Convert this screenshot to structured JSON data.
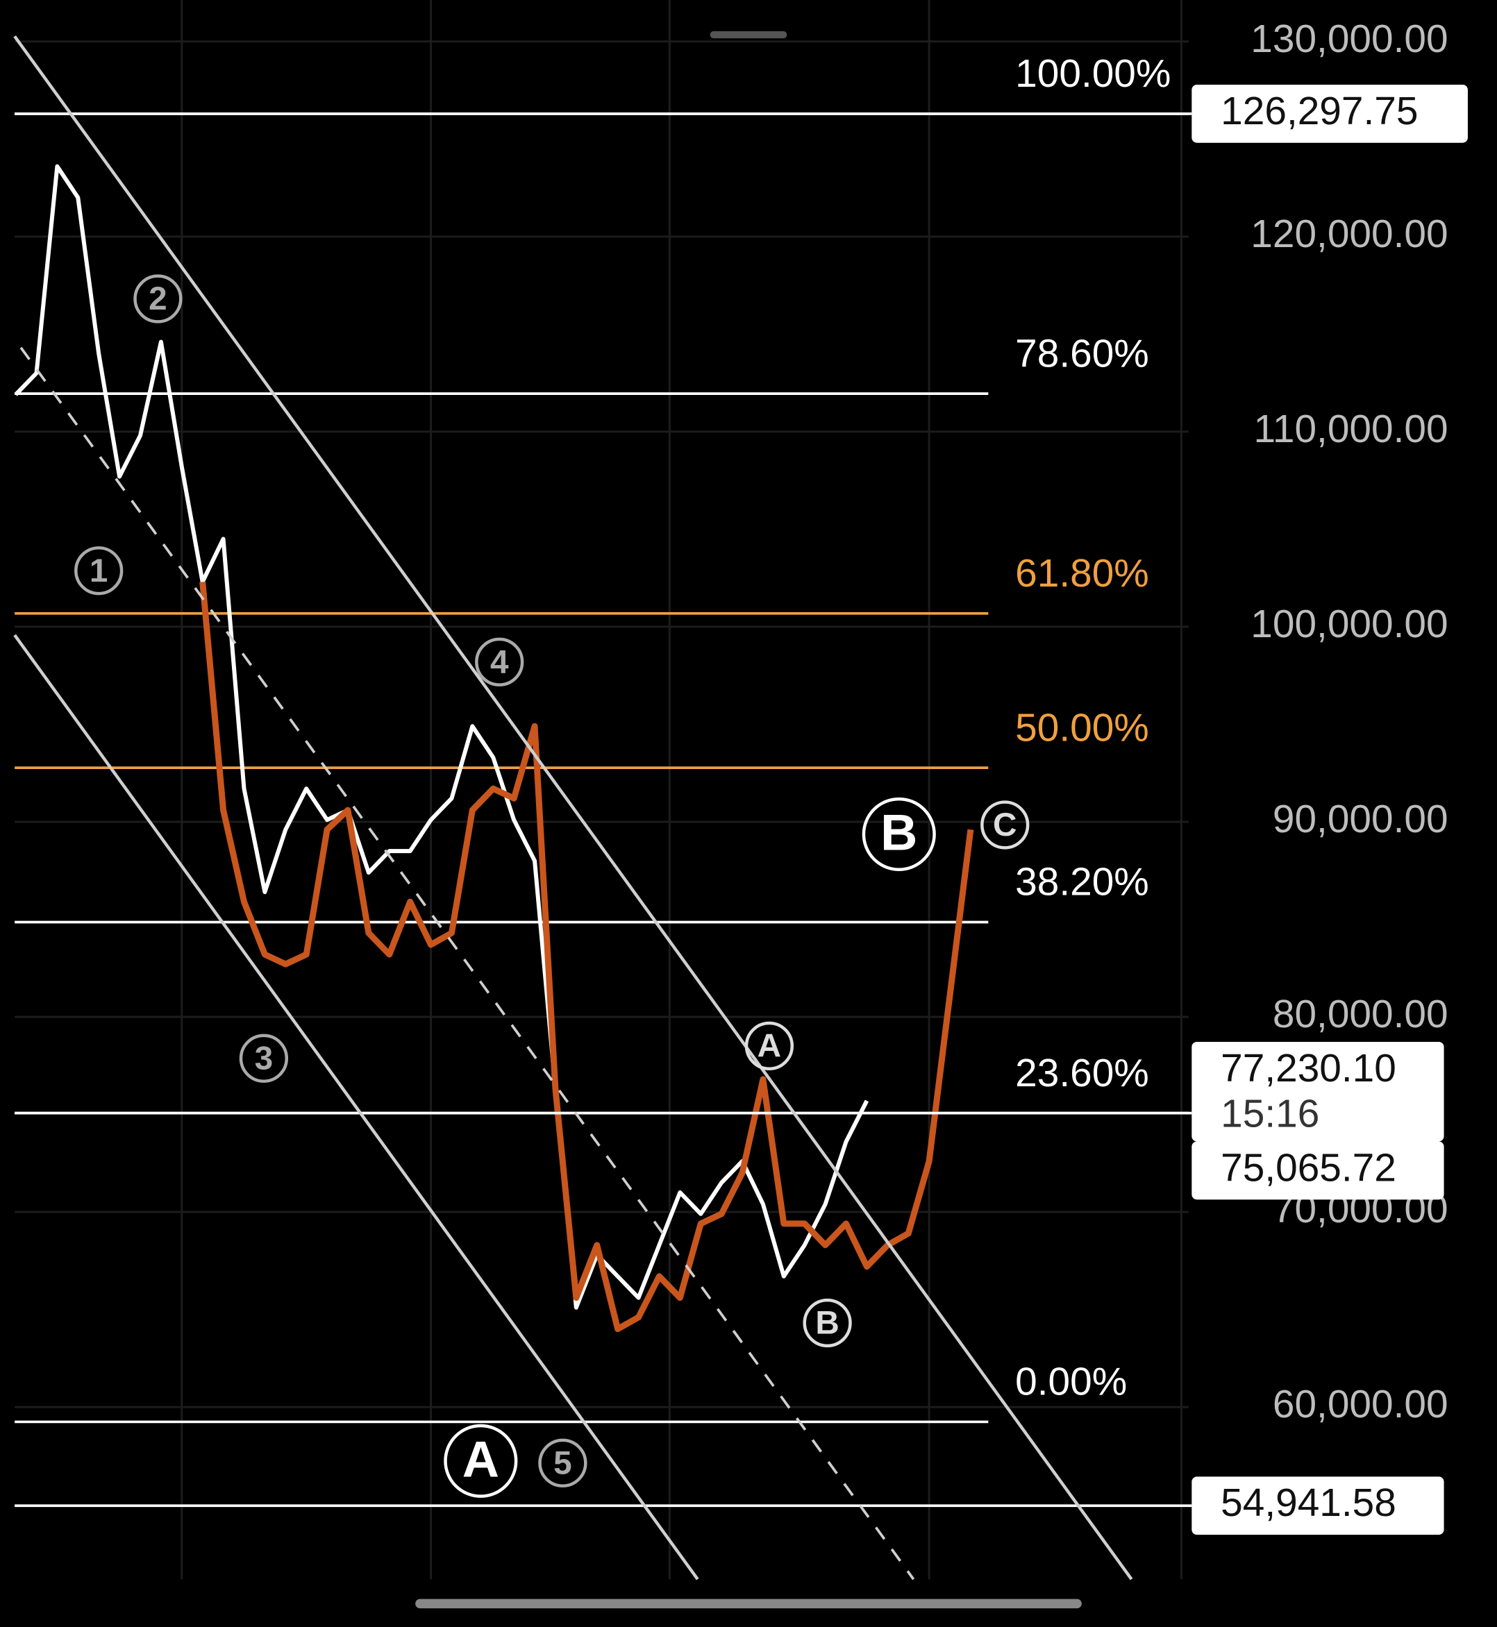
{
  "chart_data": {
    "type": "line",
    "categories": [
      null,
      null,
      null,
      null,
      null,
      null,
      null,
      null,
      null,
      null,
      null,
      null,
      null,
      null,
      null,
      null,
      null,
      null,
      null,
      null,
      null,
      null,
      null,
      null,
      null,
      null,
      null,
      null,
      null,
      null,
      null,
      null,
      null,
      null,
      null,
      null,
      null,
      null,
      null,
      null,
      null,
      null,
      null,
      null,
      null,
      null,
      null
    ],
    "series": [
      {
        "name": null,
        "color": "#ffffff",
        "values": [
          111900,
          113000,
          123600,
          122000,
          114000,
          107700,
          109800,
          114600,
          108200,
          102300,
          104500,
          91700,
          86400,
          89600,
          91700,
          90100,
          90600,
          87400,
          88500,
          88500,
          90100,
          91200,
          94900,
          93300,
          90100,
          88000,
          76300,
          65100,
          67800,
          66700,
          65600,
          68300,
          71000,
          69900,
          71500,
          72600,
          70400,
          66700,
          68300,
          70400,
          73600,
          75700,
          null,
          null,
          null,
          null,
          null
        ]
      },
      {
        "name": null,
        "color": "#c8561d",
        "values": [
          null,
          null,
          null,
          null,
          null,
          null,
          null,
          null,
          null,
          102300,
          90600,
          85900,
          83200,
          82700,
          83200,
          89600,
          90600,
          84300,
          83200,
          85900,
          83700,
          84300,
          90600,
          91700,
          91200,
          94900,
          76300,
          65600,
          68300,
          64000,
          64600,
          66700,
          65600,
          69400,
          69900,
          72000,
          76800,
          69400,
          69400,
          68300,
          69400,
          67200,
          68300,
          68900,
          72600,
          81100,
          89600
        ]
      }
    ],
    "ylim": [
      51170,
      132128
    ],
    "yticks": [
      {
        "value": 130000,
        "label": "130,000.00"
      },
      {
        "value": 120000,
        "label": "120,000.00"
      },
      {
        "value": 110000,
        "label": "110,000.00"
      },
      {
        "value": 100000,
        "label": "100,000.00"
      },
      {
        "value": 90000,
        "label": "90,000.00"
      },
      {
        "value": 80000,
        "label": "80,000.00"
      },
      {
        "value": 70000,
        "label": "70,000.00"
      },
      {
        "value": 60000,
        "label": "60,000.00"
      }
    ],
    "grid": true,
    "fib_levels": [
      {
        "ratio": 100,
        "label": "100.00%",
        "price": 126297.75,
        "color": "#ffffff"
      },
      {
        "ratio": 78.6,
        "label": "78.60%",
        "price": 111948,
        "color": "#ffffff"
      },
      {
        "ratio": 61.8,
        "label": "61.80%",
        "price": 100682,
        "color": "#f0a040"
      },
      {
        "ratio": 50,
        "label": "50.00%",
        "price": 92769,
        "color": "#f0a040"
      },
      {
        "ratio": 38.2,
        "label": "38.20%",
        "price": 84856,
        "color": "#ffffff"
      },
      {
        "ratio": 23.6,
        "label": "23.60%",
        "price": 75065.72,
        "color": "#ffffff"
      },
      {
        "ratio": 0,
        "label": "0.00%",
        "price": 59240,
        "color": "#ffffff"
      }
    ],
    "price_labels": [
      {
        "value": 126297.75,
        "label": "126,297.75"
      },
      {
        "value": 77230.1,
        "label": "77,230.10",
        "time": "15:16"
      },
      {
        "value": 75065.72,
        "label": "75,065.72"
      },
      {
        "value": 54941.58,
        "label": "54,941.58"
      }
    ],
    "annotations": [
      "1",
      "2",
      "3",
      "4",
      "5",
      "A",
      "B",
      "A",
      "B",
      "C"
    ]
  }
}
